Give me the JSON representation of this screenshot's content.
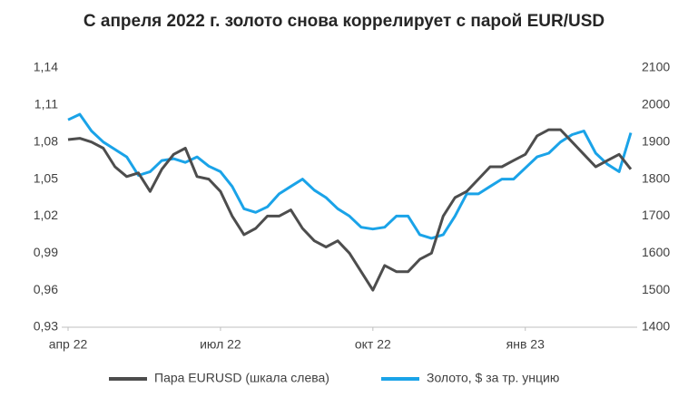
{
  "chart_data": {
    "type": "line",
    "title": "С апреля 2022 г. золото снова коррелирует с парой EUR/USD",
    "categories": [
      "апр 22",
      null,
      null,
      null,
      null,
      null,
      null,
      null,
      null,
      null,
      null,
      null,
      null,
      "июл 22",
      null,
      null,
      null,
      null,
      null,
      null,
      null,
      null,
      null,
      null,
      null,
      null,
      "окт 22",
      null,
      null,
      null,
      null,
      null,
      null,
      null,
      null,
      null,
      null,
      null,
      null,
      "янв 23",
      null,
      null,
      null,
      null,
      null,
      null,
      null,
      null,
      null
    ],
    "series": [
      {
        "name": "Пара EURUSD (шкала слева)",
        "color": "#4d4d4d",
        "axis": "y",
        "values": [
          1.082,
          1.083,
          1.08,
          1.075,
          1.06,
          1.052,
          1.055,
          1.04,
          1.058,
          1.07,
          1.075,
          1.052,
          1.05,
          1.04,
          1.02,
          1.005,
          1.01,
          1.02,
          1.02,
          1.025,
          1.01,
          1.0,
          0.995,
          1.0,
          0.99,
          0.975,
          0.96,
          0.98,
          0.975,
          0.975,
          0.985,
          0.99,
          1.02,
          1.035,
          1.04,
          1.05,
          1.06,
          1.06,
          1.065,
          1.07,
          1.085,
          1.09,
          1.09,
          1.08,
          1.07,
          1.06,
          1.065,
          1.07,
          1.058
        ]
      },
      {
        "name": "Золото, $ за тр. унцию",
        "color": "#1aa3e8",
        "axis": "y2",
        "values": [
          1960,
          1975,
          1930,
          1900,
          1880,
          1860,
          1810,
          1820,
          1850,
          1855,
          1845,
          1860,
          1835,
          1820,
          1780,
          1720,
          1710,
          1725,
          1760,
          1780,
          1800,
          1770,
          1750,
          1720,
          1700,
          1670,
          1665,
          1670,
          1700,
          1700,
          1650,
          1640,
          1650,
          1700,
          1760,
          1760,
          1780,
          1800,
          1800,
          1830,
          1860,
          1870,
          1900,
          1920,
          1930,
          1870,
          1840,
          1820,
          1925
        ]
      }
    ],
    "ylim": [
      0.93,
      1.14
    ],
    "yticks": [
      {
        "value": 0.93,
        "label": "0,93"
      },
      {
        "value": 0.96,
        "label": "0,96"
      },
      {
        "value": 0.99,
        "label": "0,99"
      },
      {
        "value": 1.02,
        "label": "1,02"
      },
      {
        "value": 1.05,
        "label": "1,05"
      },
      {
        "value": 1.08,
        "label": "1,08"
      },
      {
        "value": 1.11,
        "label": "1,11"
      },
      {
        "value": 1.14,
        "label": "1,14"
      }
    ],
    "y2lim": [
      1400,
      2100
    ],
    "y2ticks": [
      1400,
      1500,
      1600,
      1700,
      1800,
      1900,
      2000,
      2100
    ],
    "legend": "bottom"
  }
}
